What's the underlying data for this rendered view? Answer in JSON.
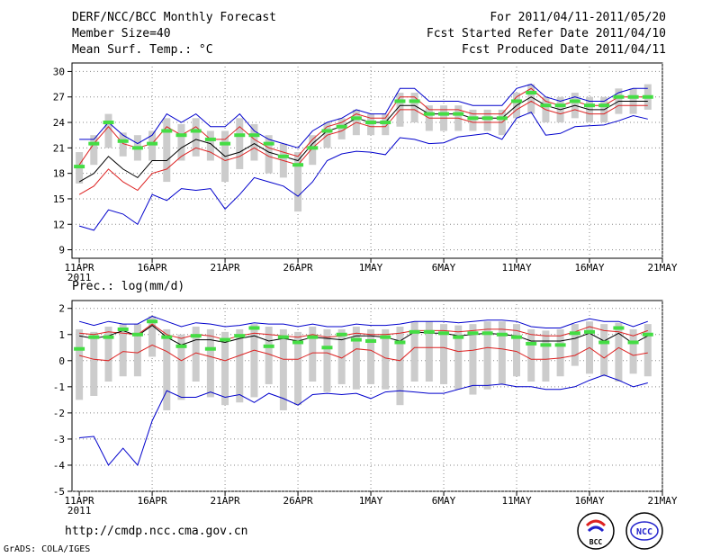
{
  "header": {
    "title": "DERF/NCC/BCC Monthly Forecast",
    "member_size": "Member Size=40",
    "variable_top": "Mean Surf. Temp.: °C",
    "period": "For 2011/04/11-2011/05/20",
    "start_date": "Fcst Started Refer Date 2011/04/10",
    "produced_date": "Fcst Produced Date 2011/04/11"
  },
  "footer": {
    "url": "http://cmdp.ncc.cma.gov.cn",
    "credit": "GrADS: COLA/IGES",
    "logo_bcc": "BCC",
    "logo_ncc": "NCC"
  },
  "colors": {
    "box": "#cccccc",
    "median": "#44dd44",
    "mean": "#000000",
    "p_low": "#dd2222",
    "max_min": "#0000cc",
    "grid": "#888888"
  },
  "chart_data": [
    {
      "type": "line",
      "title": "Mean Surf. Temp.: °C",
      "x_ticks": [
        "11APR",
        "16APR",
        "21APR",
        "26APR",
        "1MAY",
        "6MAY",
        "11MAY",
        "16MAY",
        "21MAY"
      ],
      "x_year": "2011",
      "ylim": [
        8,
        31
      ],
      "y_ticks": [
        9,
        12,
        15,
        18,
        21,
        24,
        27,
        30
      ],
      "series": [
        {
          "name": "max",
          "color": "#0000cc",
          "values": [
            22.0,
            22.0,
            24.0,
            22.5,
            21.5,
            22.5,
            25.0,
            24.0,
            25.0,
            23.5,
            23.5,
            25.0,
            23.0,
            22.0,
            21.5,
            21.0,
            23.0,
            24.0,
            24.5,
            25.5,
            25.0,
            25.0,
            28.0,
            28.0,
            26.5,
            26.5,
            26.5,
            26.0,
            26.0,
            26.0,
            28.0,
            28.5,
            27.0,
            26.5,
            27.0,
            26.5,
            26.5,
            27.5,
            28.0,
            28.0
          ]
        },
        {
          "name": "upper",
          "color": "#dd2222",
          "values": [
            19.0,
            21.5,
            23.5,
            21.5,
            21.0,
            21.5,
            23.5,
            22.5,
            23.5,
            22.0,
            22.0,
            23.5,
            22.0,
            21.0,
            20.5,
            20.0,
            22.0,
            23.5,
            24.0,
            25.0,
            24.5,
            24.5,
            27.0,
            27.0,
            25.5,
            25.5,
            25.5,
            25.0,
            25.0,
            25.0,
            27.0,
            28.0,
            26.5,
            26.0,
            26.5,
            26.0,
            26.0,
            27.0,
            27.0,
            27.0
          ]
        },
        {
          "name": "mean",
          "color": "#000000",
          "values": [
            17.0,
            18.0,
            20.0,
            18.5,
            17.5,
            19.5,
            19.5,
            21.0,
            22.0,
            21.5,
            20.0,
            20.5,
            21.5,
            20.5,
            20.0,
            19.5,
            21.5,
            23.0,
            23.5,
            24.5,
            24.0,
            24.0,
            26.0,
            26.0,
            25.0,
            25.0,
            25.0,
            24.5,
            24.5,
            24.5,
            26.0,
            27.0,
            26.0,
            25.5,
            26.0,
            25.5,
            25.5,
            26.5,
            26.5,
            26.5
          ]
        },
        {
          "name": "lower",
          "color": "#dd2222",
          "values": [
            15.5,
            16.5,
            18.5,
            17.0,
            16.0,
            18.0,
            18.5,
            20.0,
            21.0,
            20.5,
            19.5,
            20.0,
            21.0,
            20.0,
            19.5,
            19.0,
            21.0,
            22.5,
            23.0,
            24.0,
            23.5,
            23.5,
            25.5,
            25.5,
            24.5,
            24.5,
            24.5,
            24.0,
            24.0,
            24.0,
            25.5,
            26.5,
            25.5,
            25.0,
            25.5,
            25.0,
            25.0,
            26.0,
            26.0,
            26.0
          ]
        },
        {
          "name": "min",
          "color": "#0000cc",
          "values": [
            11.8,
            11.3,
            13.7,
            13.2,
            12.0,
            15.5,
            14.8,
            16.2,
            16.0,
            16.2,
            13.8,
            15.5,
            17.5,
            17.0,
            16.5,
            15.3,
            17.0,
            19.5,
            20.3,
            20.6,
            20.5,
            20.2,
            22.2,
            22.0,
            21.5,
            21.6,
            22.3,
            22.5,
            22.7,
            22.0,
            24.5,
            25.2,
            22.5,
            22.7,
            23.5,
            23.6,
            23.7,
            24.2,
            24.8,
            24.4
          ]
        }
      ],
      "median": [
        18.8,
        21.5,
        24.0,
        21.8,
        21.0,
        21.5,
        23.0,
        22.5,
        23.0,
        22.0,
        21.5,
        22.5,
        22.5,
        21.5,
        20.0,
        19.0,
        21.0,
        23.0,
        23.5,
        24.5,
        24.0,
        24.0,
        26.5,
        26.5,
        25.0,
        25.0,
        25.0,
        24.5,
        24.5,
        24.5,
        26.5,
        27.5,
        26.0,
        26.0,
        26.5,
        26.0,
        26.0,
        27.0,
        27.0,
        27.0
      ],
      "box_low": [
        16.8,
        19.0,
        21.0,
        20.0,
        19.5,
        19.5,
        17.0,
        19.5,
        20.0,
        19.5,
        17.0,
        18.5,
        19.5,
        18.0,
        17.5,
        13.5,
        19.0,
        21.0,
        22.0,
        22.5,
        22.5,
        22.5,
        23.5,
        24.0,
        23.0,
        23.0,
        23.0,
        23.0,
        23.0,
        22.5,
        24.5,
        25.0,
        24.0,
        24.0,
        24.5,
        24.0,
        24.0,
        25.0,
        25.0,
        25.5
      ],
      "box_high": [
        20.5,
        22.5,
        25.0,
        22.8,
        22.5,
        23.0,
        24.5,
        23.8,
        24.5,
        23.0,
        23.0,
        24.5,
        23.8,
        22.5,
        21.5,
        20.5,
        22.5,
        24.0,
        24.5,
        25.5,
        25.0,
        25.0,
        27.5,
        27.5,
        26.0,
        26.0,
        26.0,
        25.5,
        25.5,
        25.5,
        27.5,
        28.5,
        27.0,
        27.0,
        27.5,
        27.0,
        27.0,
        28.0,
        28.0,
        28.5
      ]
    },
    {
      "type": "line",
      "title": "Prec.: log(mm/d)",
      "x_ticks": [
        "11APR",
        "16APR",
        "21APR",
        "26APR",
        "1MAY",
        "6MAY",
        "11MAY",
        "16MAY",
        "21MAY"
      ],
      "x_year": "2011",
      "ylim": [
        -5,
        2.3
      ],
      "y_ticks": [
        -5,
        -4,
        -3,
        -2,
        -1,
        0,
        1,
        2
      ],
      "series": [
        {
          "name": "max",
          "color": "#0000cc",
          "values": [
            1.5,
            1.35,
            1.5,
            1.4,
            1.4,
            1.7,
            1.5,
            1.3,
            1.45,
            1.4,
            1.3,
            1.35,
            1.45,
            1.4,
            1.4,
            1.3,
            1.4,
            1.3,
            1.3,
            1.4,
            1.35,
            1.35,
            1.4,
            1.5,
            1.5,
            1.5,
            1.45,
            1.5,
            1.55,
            1.55,
            1.5,
            1.3,
            1.25,
            1.25,
            1.45,
            1.6,
            1.5,
            1.5,
            1.3,
            1.5
          ]
        },
        {
          "name": "upper",
          "color": "#dd2222",
          "values": [
            1.05,
            1.0,
            1.1,
            1.05,
            1.0,
            1.4,
            1.0,
            0.85,
            1.0,
            0.95,
            0.8,
            0.95,
            1.05,
            1.0,
            0.95,
            0.9,
            1.0,
            0.9,
            0.95,
            1.05,
            1.0,
            1.0,
            1.05,
            1.15,
            1.15,
            1.15,
            1.1,
            1.15,
            1.2,
            1.2,
            1.15,
            1.0,
            0.95,
            0.95,
            1.1,
            1.3,
            1.15,
            1.1,
            0.95,
            1.15
          ]
        },
        {
          "name": "mean",
          "color": "#000000",
          "values": [
            0.95,
            0.85,
            0.95,
            1.15,
            0.95,
            1.35,
            0.9,
            0.6,
            0.8,
            0.8,
            0.7,
            0.85,
            0.95,
            0.75,
            0.85,
            0.75,
            0.9,
            0.85,
            0.8,
            0.95,
            0.95,
            0.9,
            0.75,
            1.1,
            1.05,
            1.05,
            0.95,
            1.0,
            1.05,
            1.0,
            0.95,
            0.75,
            0.75,
            0.75,
            0.85,
            1.05,
            0.75,
            1.05,
            0.65,
            0.95
          ]
        },
        {
          "name": "lower",
          "color": "#dd2222",
          "values": [
            0.2,
            0.05,
            0.0,
            0.35,
            0.3,
            0.6,
            0.35,
            0.0,
            0.3,
            0.15,
            0.0,
            0.2,
            0.4,
            0.25,
            0.05,
            0.05,
            0.3,
            0.3,
            0.1,
            0.45,
            0.4,
            0.1,
            0.0,
            0.5,
            0.5,
            0.5,
            0.35,
            0.4,
            0.5,
            0.45,
            0.35,
            0.05,
            0.05,
            0.1,
            0.2,
            0.5,
            0.1,
            0.5,
            0.2,
            0.3
          ]
        },
        {
          "name": "min",
          "color": "#0000cc",
          "values": [
            -2.95,
            -2.9,
            -4.0,
            -3.35,
            -4.0,
            -2.3,
            -1.15,
            -1.4,
            -1.4,
            -1.2,
            -1.4,
            -1.3,
            -1.6,
            -1.25,
            -1.45,
            -1.7,
            -1.3,
            -1.25,
            -1.3,
            -1.25,
            -1.45,
            -1.2,
            -1.15,
            -1.2,
            -1.25,
            -1.25,
            -1.1,
            -0.95,
            -0.95,
            -0.9,
            -1.0,
            -1.0,
            -1.1,
            -1.1,
            -1.0,
            -0.75,
            -0.55,
            -0.75,
            -1.0,
            -0.85
          ]
        }
      ],
      "median": [
        0.45,
        0.9,
        0.9,
        1.2,
        1.0,
        1.5,
        0.9,
        0.55,
        0.95,
        0.45,
        0.8,
        0.95,
        1.25,
        0.55,
        0.9,
        0.7,
        0.9,
        0.5,
        1.0,
        0.8,
        0.75,
        0.9,
        0.7,
        1.1,
        1.1,
        1.05,
        0.9,
        1.05,
        1.05,
        1.0,
        0.9,
        0.65,
        0.6,
        0.6,
        1.05,
        1.1,
        0.7,
        1.25,
        0.7,
        1.0
      ],
      "box_low": [
        -1.5,
        -1.35,
        -0.8,
        -0.6,
        -0.6,
        0.15,
        -1.9,
        -1.5,
        -0.8,
        -1.4,
        -1.7,
        -1.6,
        -1.4,
        -0.9,
        -1.9,
        -1.7,
        -0.8,
        -1.2,
        -0.9,
        -1.1,
        -0.9,
        -1.1,
        -1.7,
        -0.8,
        -0.8,
        -0.9,
        -1.1,
        -1.3,
        -1.1,
        -0.9,
        -0.6,
        -0.8,
        -0.8,
        -0.6,
        -0.2,
        -0.5,
        -0.6,
        -0.8,
        -0.5,
        -0.6
      ],
      "box_high": [
        1.2,
        1.1,
        1.3,
        1.4,
        1.4,
        1.7,
        1.2,
        1.0,
        1.3,
        1.2,
        1.1,
        1.2,
        1.4,
        1.3,
        1.2,
        1.1,
        1.3,
        1.2,
        1.2,
        1.3,
        1.2,
        1.2,
        1.3,
        1.5,
        1.5,
        1.4,
        1.35,
        1.4,
        1.5,
        1.5,
        1.4,
        1.2,
        1.15,
        1.2,
        1.4,
        1.5,
        1.4,
        1.45,
        1.2,
        1.4
      ]
    }
  ]
}
